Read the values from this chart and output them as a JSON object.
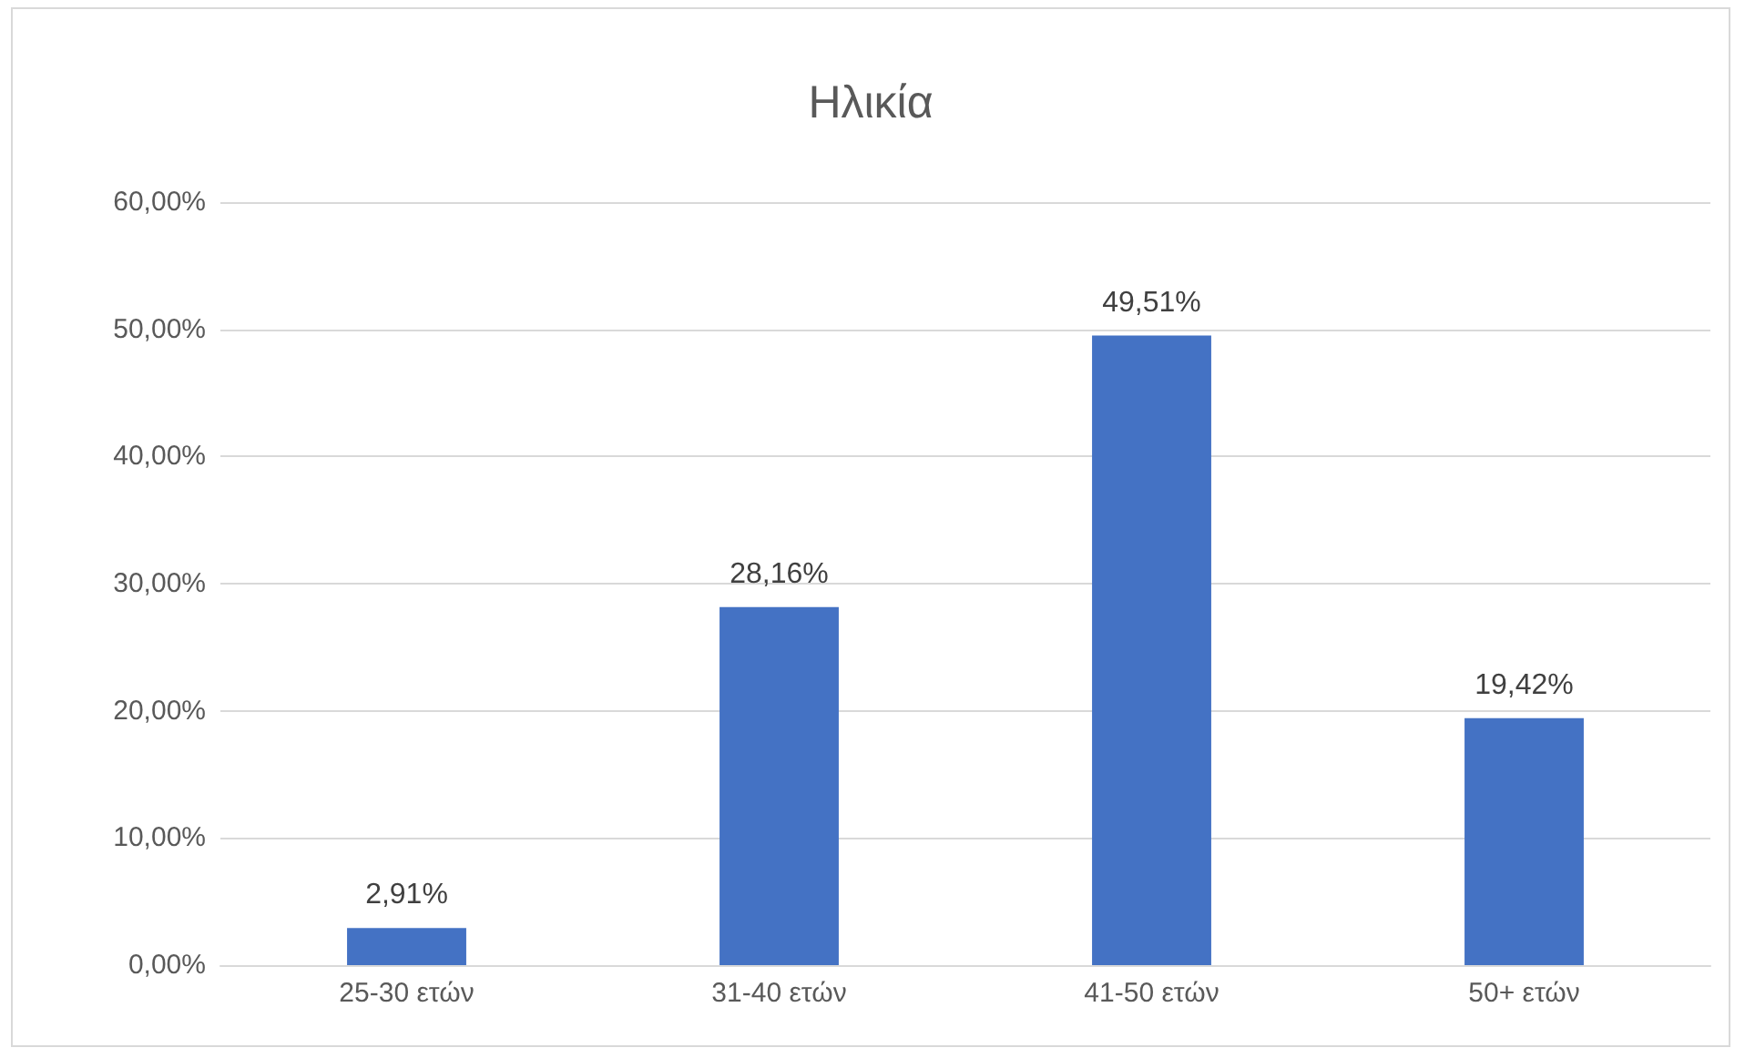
{
  "chart_data": {
    "type": "bar",
    "title": "Ηλικία",
    "categories": [
      "25-30 ετών",
      "31-40 ετών",
      "41-50 ετών",
      "50+ ετών"
    ],
    "values": [
      2.91,
      28.16,
      49.51,
      19.42
    ],
    "value_labels": [
      "2,91%",
      "28,16%",
      "49,51%",
      "19,42%"
    ],
    "color": "#4472c4",
    "ylim": [
      0,
      60
    ],
    "yticks": [
      {
        "value": 0,
        "label": "0,00%"
      },
      {
        "value": 10,
        "label": "10,00%"
      },
      {
        "value": 20,
        "label": "20,00%"
      },
      {
        "value": 30,
        "label": "30,00%"
      },
      {
        "value": 40,
        "label": "40,00%"
      },
      {
        "value": 50,
        "label": "50,00%"
      },
      {
        "value": 60,
        "label": "60,00%"
      }
    ],
    "grid": "y"
  }
}
